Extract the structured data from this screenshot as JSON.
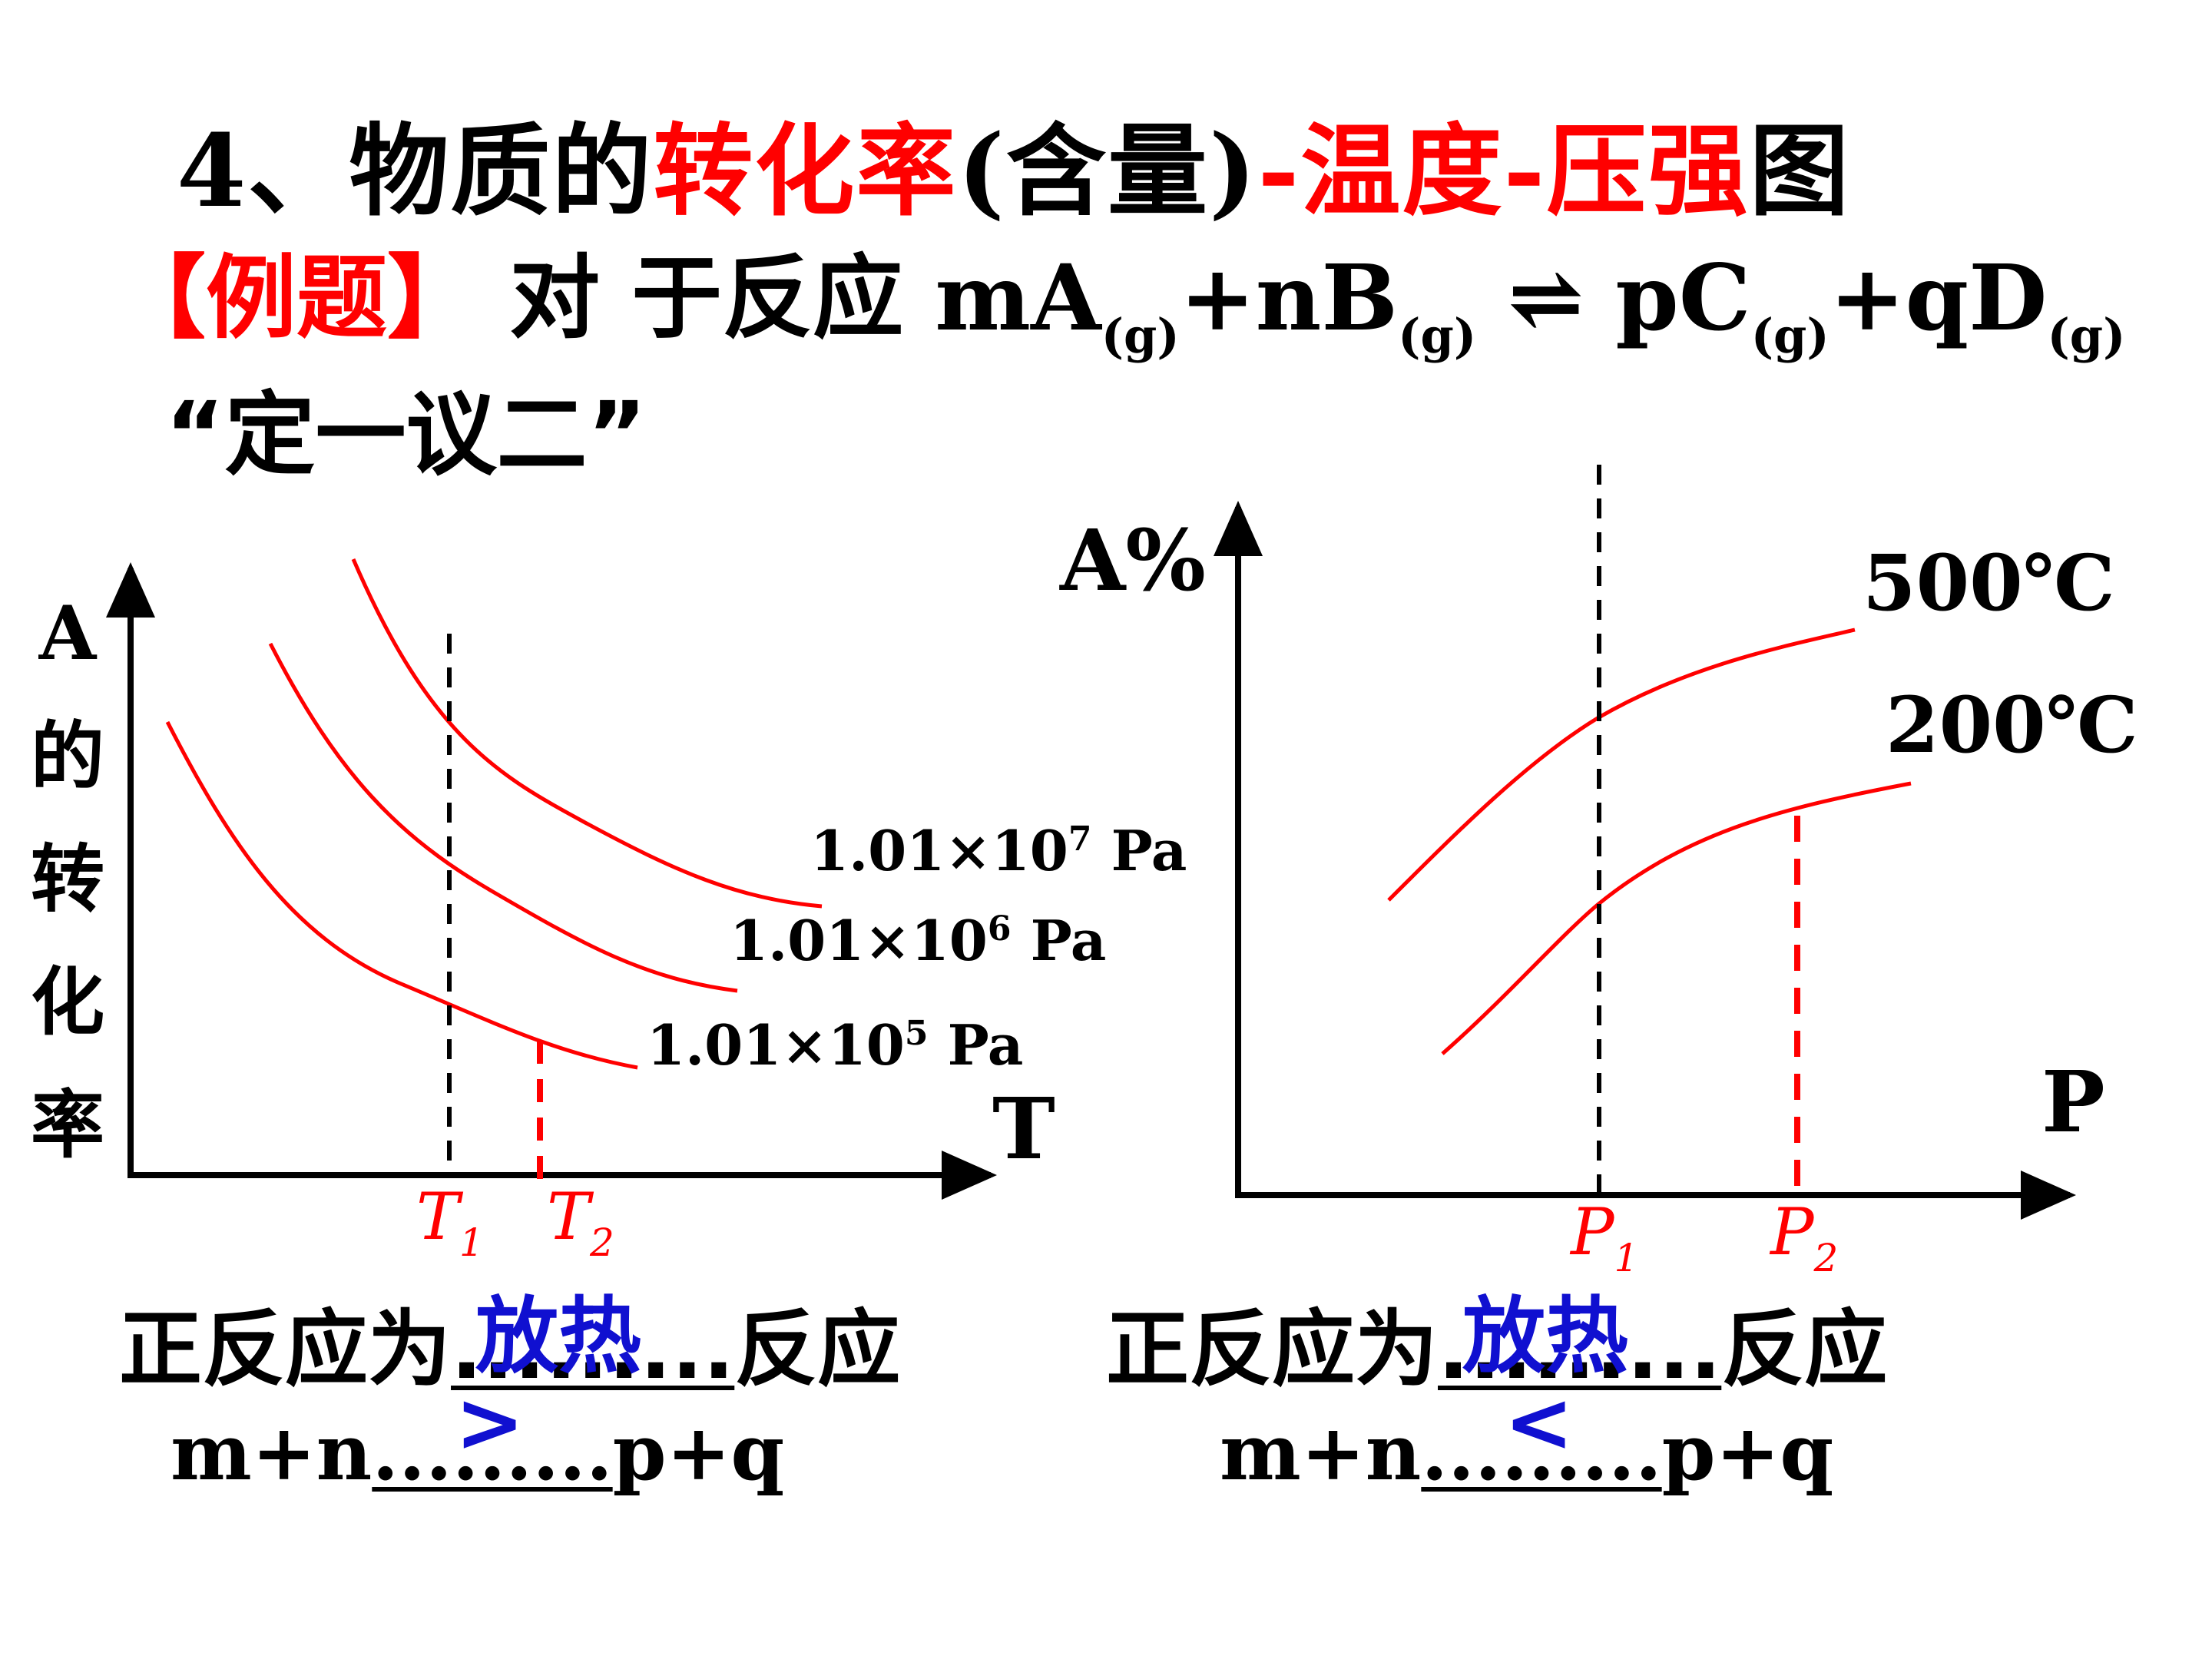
{
  "title": {
    "prefix": "4、物质的",
    "conversion": "转化率",
    "content": "(含量)",
    "temperature": "-温度-",
    "pressure": "压强",
    "suffix": "图"
  },
  "example": {
    "tag": "【例题】",
    "lead": "对 于反应",
    "r1": "mA",
    "r1_phase": "(g)",
    "r2": "+nB",
    "r2_phase": "(g)",
    "arrow": "⇌",
    "p1": "pC",
    "p1_phase": "(g)",
    "p2": "+qD",
    "p2_phase": "(g)"
  },
  "method": "“定一议二”",
  "left_chart": {
    "ylabel_chars": [
      "A",
      "的",
      "转",
      "化",
      "率"
    ],
    "xlabel": "T",
    "pressure_labels": [
      {
        "mantissa": "1.01×10",
        "exp": "7",
        "unit": " Pa"
      },
      {
        "mantissa": "1.01×10",
        "exp": "6",
        "unit": " Pa"
      },
      {
        "mantissa": "1.01×10",
        "exp": "5",
        "unit": " Pa"
      }
    ],
    "ticks": [
      {
        "main": "T",
        "sub": "1"
      },
      {
        "main": "T",
        "sub": "2"
      }
    ]
  },
  "right_chart": {
    "ylabel": "A%",
    "xlabel": "P",
    "temp_labels": [
      "500℃",
      "200℃"
    ],
    "ticks": [
      {
        "main": "P",
        "sub": "1"
      },
      {
        "main": "P",
        "sub": "2"
      }
    ]
  },
  "answers": {
    "left": {
      "prefix": "正反应为",
      "blank": ".........",
      "fill": "放热",
      "suffix": "反应",
      "rel_prefix": "m+n",
      "rel_blank": ".........",
      "rel_fill": ">",
      "rel_suffix": "p+q"
    },
    "right": {
      "prefix": "正反应为",
      "blank": ".........",
      "fill": "放热",
      "suffix": "反应",
      "rel_prefix": "m+n",
      "rel_blank": ".........",
      "rel_fill": "<",
      "rel_suffix": "p+q"
    }
  },
  "colors": {
    "curve": "#ff0000",
    "axis": "#000000",
    "answer": "#1010d0"
  }
}
